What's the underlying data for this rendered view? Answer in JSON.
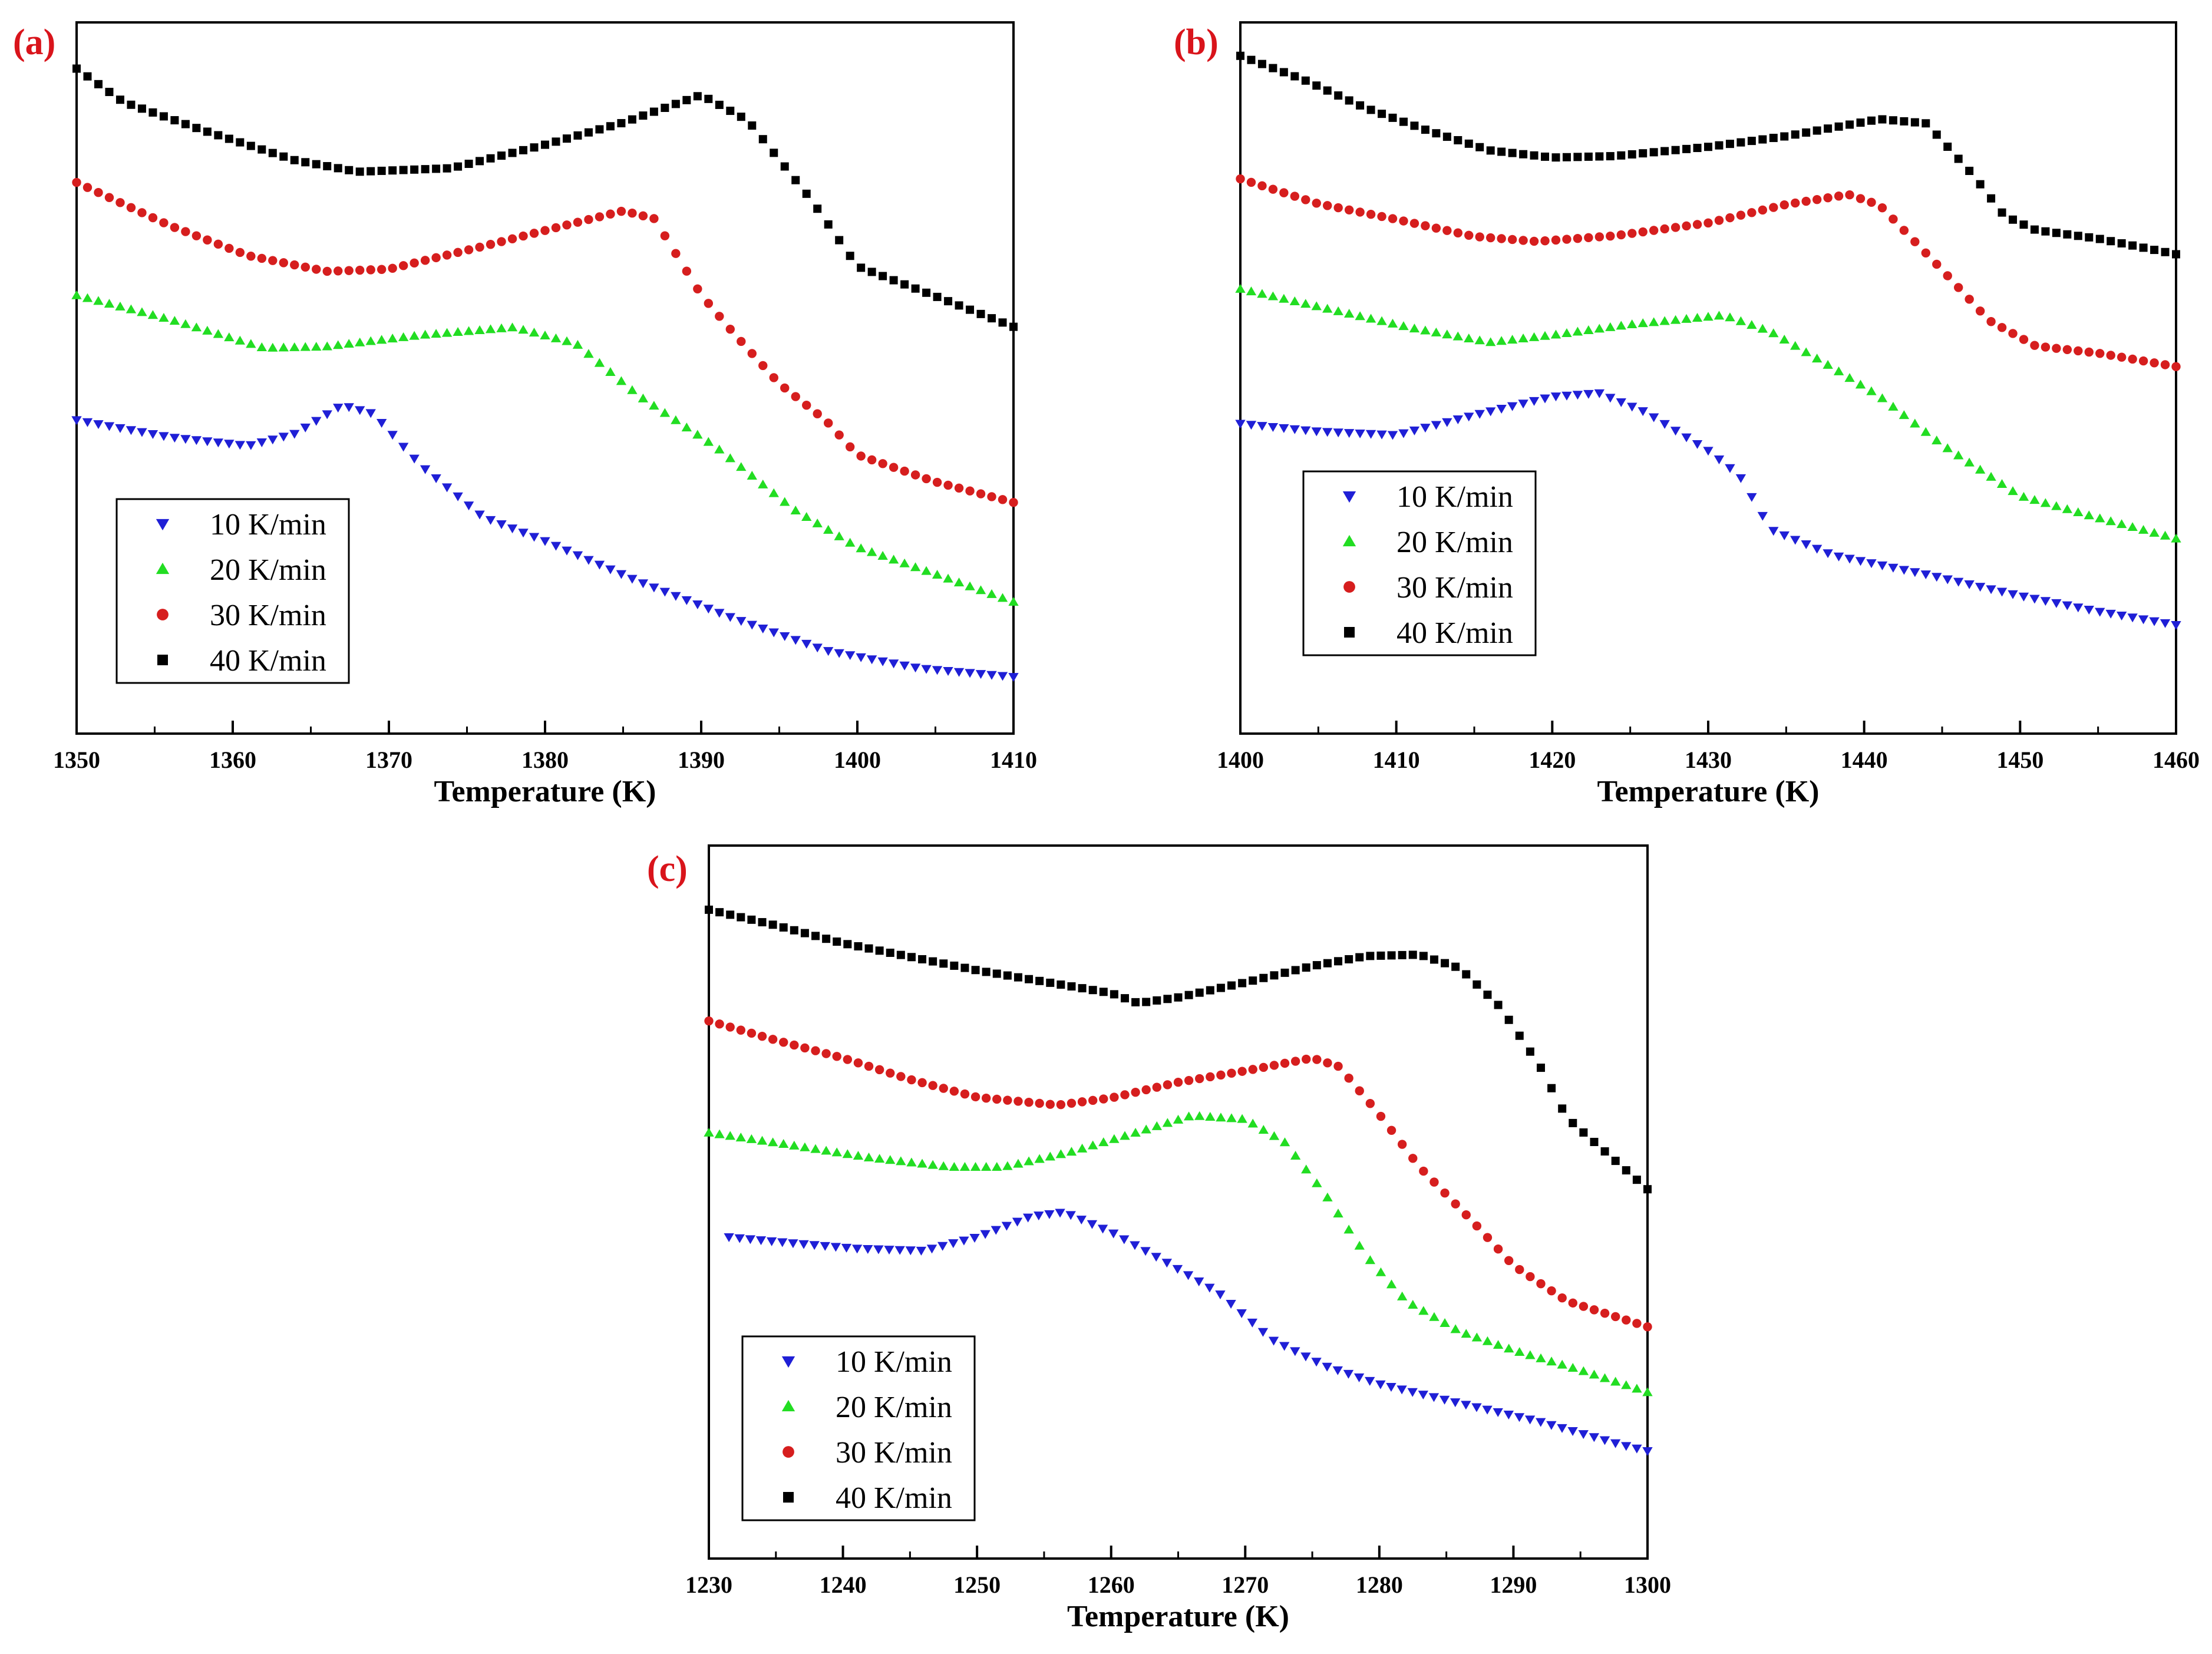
{
  "series_styles": {
    "10 K/min": {
      "color": "#1f1fd6",
      "marker": "triangle-down"
    },
    "20 K/min": {
      "color": "#22dd22",
      "marker": "triangle-up"
    },
    "30 K/min": {
      "color": "#d61e1e",
      "marker": "circle"
    },
    "40 K/min": {
      "color": "#000000",
      "marker": "square"
    }
  },
  "chart_data": [
    {
      "panel": "(a)",
      "type": "scatter",
      "xlabel": "Temperature (K)",
      "ylabel": "",
      "xlim": [
        1350,
        1410
      ],
      "ylim": [
        0,
        1
      ],
      "xticks": [
        1350,
        1360,
        1370,
        1380,
        1390,
        1400,
        1410
      ],
      "xtick_labels": [
        "1350",
        "1360",
        "1370",
        "1380",
        "1390",
        "1400",
        "1410"
      ],
      "legend": [
        "10 K/min",
        "20 K/min",
        "30 K/min",
        "40 K/min"
      ],
      "legend_position": "lower-left",
      "step": 0.7,
      "series": [
        {
          "name": "10 K/min",
          "points": [
            [
              1350,
              0.441
            ],
            [
              1356,
              0.417
            ],
            [
              1361,
              0.405
            ],
            [
              1364,
              0.422
            ],
            [
              1367,
              0.462
            ],
            [
              1369,
              0.45
            ],
            [
              1372,
              0.378
            ],
            [
              1376,
              0.305
            ],
            [
              1380,
              0.271
            ],
            [
              1386,
              0.214
            ],
            [
              1392,
              0.163
            ],
            [
              1398,
              0.117
            ],
            [
              1404,
              0.092
            ],
            [
              1410,
              0.08
            ]
          ]
        },
        {
          "name": "20 K/min",
          "points": [
            [
              1350,
              0.616
            ],
            [
              1356,
              0.582
            ],
            [
              1362,
              0.542
            ],
            [
              1366,
              0.544
            ],
            [
              1372,
              0.56
            ],
            [
              1378,
              0.571
            ],
            [
              1382,
              0.548
            ],
            [
              1386,
              0.475
            ],
            [
              1391,
              0.402
            ],
            [
              1396,
              0.314
            ],
            [
              1400,
              0.262
            ],
            [
              1405,
              0.224
            ],
            [
              1410,
              0.185
            ]
          ]
        },
        {
          "name": "30 K/min",
          "points": [
            [
              1350,
              0.775
            ],
            [
              1356,
              0.714
            ],
            [
              1361,
              0.672
            ],
            [
              1366,
              0.65
            ],
            [
              1370,
              0.653
            ],
            [
              1376,
              0.685
            ],
            [
              1381,
              0.713
            ],
            [
              1385,
              0.735
            ],
            [
              1387,
              0.724
            ],
            [
              1390,
              0.617
            ],
            [
              1392,
              0.565
            ],
            [
              1395,
              0.492
            ],
            [
              1398,
              0.44
            ],
            [
              1400,
              0.392
            ],
            [
              1405,
              0.354
            ],
            [
              1410,
              0.325
            ]
          ]
        },
        {
          "name": "40 K/min",
          "points": [
            [
              1350,
              0.935
            ],
            [
              1353,
              0.888
            ],
            [
              1358,
              0.849
            ],
            [
              1364,
              0.806
            ],
            [
              1368,
              0.79
            ],
            [
              1374,
              0.795
            ],
            [
              1380,
              0.828
            ],
            [
              1385,
              0.859
            ],
            [
              1390,
              0.898
            ],
            [
              1393,
              0.862
            ],
            [
              1397,
              0.752
            ],
            [
              1400,
              0.657
            ],
            [
              1405,
              0.615
            ],
            [
              1410,
              0.572
            ]
          ]
        }
      ]
    },
    {
      "panel": "(b)",
      "type": "scatter",
      "xlabel": "Temperature (K)",
      "ylabel": "",
      "xlim": [
        1400,
        1460
      ],
      "ylim": [
        0,
        1
      ],
      "xticks": [
        1400,
        1410,
        1420,
        1430,
        1440,
        1450,
        1460
      ],
      "xtick_labels": [
        "1400",
        "1410",
        "1420",
        "1430",
        "1440",
        "1450",
        "1460"
      ],
      "legend": [
        "10 K/min",
        "20 K/min",
        "30 K/min",
        "40 K/min"
      ],
      "legend_position": "lower-left",
      "step": 0.7,
      "series": [
        {
          "name": "10 K/min",
          "points": [
            [
              1400,
              0.436
            ],
            [
              1405,
              0.425
            ],
            [
              1410,
              0.42
            ],
            [
              1415,
              0.448
            ],
            [
              1420,
              0.474
            ],
            [
              1423,
              0.479
            ],
            [
              1426,
              0.452
            ],
            [
              1430,
              0.398
            ],
            [
              1432,
              0.363
            ],
            [
              1434,
              0.287
            ],
            [
              1438,
              0.251
            ],
            [
              1444,
              0.224
            ],
            [
              1450,
              0.194
            ],
            [
              1455,
              0.172
            ],
            [
              1460,
              0.153
            ]
          ]
        },
        {
          "name": "20 K/min",
          "points": [
            [
              1400,
              0.625
            ],
            [
              1405,
              0.6
            ],
            [
              1411,
              0.57
            ],
            [
              1416,
              0.55
            ],
            [
              1420,
              0.56
            ],
            [
              1425,
              0.575
            ],
            [
              1431,
              0.588
            ],
            [
              1434,
              0.565
            ],
            [
              1438,
              0.514
            ],
            [
              1441,
              0.474
            ],
            [
              1445,
              0.406
            ],
            [
              1450,
              0.334
            ],
            [
              1455,
              0.303
            ],
            [
              1460,
              0.274
            ]
          ]
        },
        {
          "name": "30 K/min",
          "points": [
            [
              1400,
              0.78
            ],
            [
              1405,
              0.745
            ],
            [
              1410,
              0.723
            ],
            [
              1415,
              0.699
            ],
            [
              1419,
              0.692
            ],
            [
              1424,
              0.7
            ],
            [
              1430,
              0.718
            ],
            [
              1435,
              0.744
            ],
            [
              1439,
              0.758
            ],
            [
              1441,
              0.743
            ],
            [
              1445,
              0.652
            ],
            [
              1448,
              0.581
            ],
            [
              1451,
              0.545
            ],
            [
              1455,
              0.535
            ],
            [
              1460,
              0.516
            ]
          ]
        },
        {
          "name": "40 K/min",
          "points": [
            [
              1400,
              0.953
            ],
            [
              1404,
              0.92
            ],
            [
              1408,
              0.88
            ],
            [
              1412,
              0.848
            ],
            [
              1416,
              0.82
            ],
            [
              1420,
              0.81
            ],
            [
              1424,
              0.812
            ],
            [
              1430,
              0.825
            ],
            [
              1435,
              0.84
            ],
            [
              1441,
              0.864
            ],
            [
              1444,
              0.858
            ],
            [
              1447,
              0.785
            ],
            [
              1449,
              0.728
            ],
            [
              1451,
              0.708
            ],
            [
              1455,
              0.696
            ],
            [
              1460,
              0.674
            ]
          ]
        }
      ]
    },
    {
      "panel": "(c)",
      "type": "scatter",
      "xlabel": "Temperature (K)",
      "ylabel": "",
      "xlim": [
        1230,
        1300
      ],
      "ylim": [
        0,
        1
      ],
      "xticks": [
        1230,
        1240,
        1250,
        1260,
        1270,
        1280,
        1290,
        1300
      ],
      "xtick_labels": [
        "1230",
        "1240",
        "1250",
        "1260",
        "1270",
        "1280",
        "1290",
        "1300"
      ],
      "legend": [
        "10 K/min",
        "20 K/min",
        "30 K/min",
        "40 K/min"
      ],
      "legend_position": "lower-left",
      "step": 0.8,
      "series": [
        {
          "name": "10 K/min",
          "points": [
            [
              1231.5,
              0.451
            ],
            [
              1236,
              0.443
            ],
            [
              1241,
              0.435
            ],
            [
              1246,
              0.432
            ],
            [
              1250,
              0.451
            ],
            [
              1254,
              0.48
            ],
            [
              1256.5,
              0.486
            ],
            [
              1260,
              0.458
            ],
            [
              1264,
              0.417
            ],
            [
              1268,
              0.373
            ],
            [
              1272,
              0.307
            ],
            [
              1276,
              0.27
            ],
            [
              1280,
              0.245
            ],
            [
              1286,
              0.218
            ],
            [
              1292,
              0.192
            ],
            [
              1298,
              0.16
            ],
            [
              1300,
              0.151
            ]
          ]
        },
        {
          "name": "20 K/min",
          "points": [
            [
              1230,
              0.597
            ],
            [
              1236,
              0.58
            ],
            [
              1242,
              0.562
            ],
            [
              1248,
              0.549
            ],
            [
              1252,
              0.549
            ],
            [
              1257,
              0.57
            ],
            [
              1262,
              0.598
            ],
            [
              1266,
              0.621
            ],
            [
              1270,
              0.616
            ],
            [
              1273,
              0.583
            ],
            [
              1276,
              0.51
            ],
            [
              1279,
              0.425
            ],
            [
              1282,
              0.361
            ],
            [
              1286,
              0.318
            ],
            [
              1290,
              0.292
            ],
            [
              1295,
              0.264
            ],
            [
              1300,
              0.233
            ]
          ]
        },
        {
          "name": "30 K/min",
          "points": [
            [
              1230,
              0.754
            ],
            [
              1235,
              0.727
            ],
            [
              1240,
              0.702
            ],
            [
              1245,
              0.672
            ],
            [
              1250,
              0.647
            ],
            [
              1256,
              0.636
            ],
            [
              1260,
              0.646
            ],
            [
              1265,
              0.668
            ],
            [
              1270,
              0.684
            ],
            [
              1275,
              0.702
            ],
            [
              1277,
              0.69
            ],
            [
              1280,
              0.623
            ],
            [
              1283,
              0.549
            ],
            [
              1287,
              0.472
            ],
            [
              1290,
              0.411
            ],
            [
              1294,
              0.361
            ],
            [
              1298,
              0.337
            ],
            [
              1300,
              0.325
            ]
          ]
        },
        {
          "name": "40 K/min",
          "points": [
            [
              1230,
              0.91
            ],
            [
              1235,
              0.888
            ],
            [
              1240,
              0.863
            ],
            [
              1245,
              0.844
            ],
            [
              1250,
              0.825
            ],
            [
              1255,
              0.809
            ],
            [
              1260,
              0.793
            ],
            [
              1262,
              0.779
            ],
            [
              1265,
              0.787
            ],
            [
              1270,
              0.808
            ],
            [
              1275,
              0.831
            ],
            [
              1279,
              0.845
            ],
            [
              1283,
              0.847
            ],
            [
              1286,
              0.828
            ],
            [
              1289,
              0.774
            ],
            [
              1292,
              0.69
            ],
            [
              1294,
              0.618
            ],
            [
              1297,
              0.568
            ],
            [
              1300,
              0.518
            ]
          ]
        }
      ]
    }
  ]
}
